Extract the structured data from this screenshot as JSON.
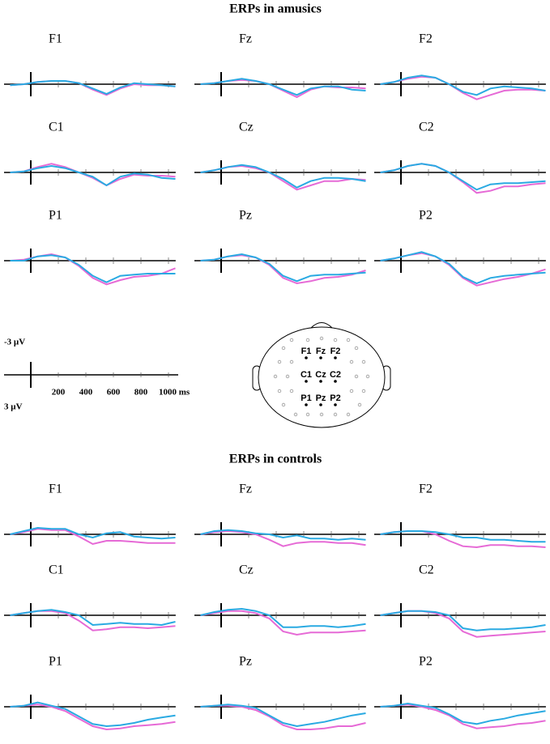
{
  "chart_data": {
    "type": "line",
    "x": [
      -150,
      -50,
      50,
      150,
      250,
      350,
      450,
      550,
      650,
      750,
      850,
      950,
      1050
    ],
    "xlim": [
      -194,
      1070
    ],
    "xticks": [
      200,
      400,
      600,
      800,
      {
        "value": 1000,
        "label": "1000 ms"
      }
    ],
    "ylim": [
      -3,
      3
    ],
    "yticks": [
      {
        "value": -3,
        "label": "-3 µV"
      },
      {
        "value": 3,
        "label": "3 µV"
      }
    ],
    "groups": [
      {
        "title": "ERPs in amusics",
        "panels": [
          {
            "label": "F1",
            "series": [
              {
                "color": "#e66ad6",
                "values": [
                  0.1,
                  0,
                  -0.2,
                  -0.3,
                  -0.3,
                  -0.1,
                  0.5,
                  1.0,
                  0.4,
                  0,
                  0.1,
                  0.1,
                  0.2
                ]
              },
              {
                "color": "#2aaae2",
                "values": [
                  0.1,
                  0,
                  -0.2,
                  -0.3,
                  -0.3,
                  -0.1,
                  0.4,
                  0.9,
                  0.3,
                  -0.1,
                  0,
                  0.1,
                  0.2
                ]
              }
            ]
          },
          {
            "label": "Fz",
            "series": [
              {
                "color": "#e66ad6",
                "values": [
                  0,
                  -0.1,
                  -0.3,
                  -0.4,
                  -0.3,
                  0,
                  0.6,
                  1.2,
                  0.5,
                  0.2,
                  0.3,
                  0.3,
                  0.4
                ]
              },
              {
                "color": "#2aaae2",
                "values": [
                  0,
                  -0.1,
                  -0.3,
                  -0.5,
                  -0.3,
                  0,
                  0.5,
                  1.0,
                  0.4,
                  0.2,
                  0.2,
                  0.5,
                  0.6
                ]
              }
            ]
          },
          {
            "label": "F2",
            "series": [
              {
                "color": "#e66ad6",
                "values": [
                  0,
                  -0.2,
                  -0.5,
                  -0.7,
                  -0.6,
                  0,
                  0.8,
                  1.4,
                  1.0,
                  0.6,
                  0.5,
                  0.5,
                  0.6
                ]
              },
              {
                "color": "#2aaae2",
                "values": [
                  0,
                  -0.2,
                  -0.6,
                  -0.8,
                  -0.6,
                  0,
                  0.7,
                  1.0,
                  0.4,
                  0.2,
                  0.3,
                  0.4,
                  0.6
                ]
              }
            ]
          },
          {
            "label": "C1",
            "series": [
              {
                "color": "#e66ad6",
                "values": [
                  0,
                  -0.1,
                  -0.5,
                  -0.8,
                  -0.5,
                  0,
                  0.5,
                  1.2,
                  0.6,
                  0.2,
                  0.3,
                  0.3,
                  0.4
                ]
              },
              {
                "color": "#2aaae2",
                "values": [
                  0,
                  -0.1,
                  -0.4,
                  -0.6,
                  -0.4,
                  0,
                  0.4,
                  1.2,
                  0.4,
                  0.1,
                  0.2,
                  0.5,
                  0.6
                ]
              }
            ]
          },
          {
            "label": "Cz",
            "series": [
              {
                "color": "#e66ad6",
                "values": [
                  0,
                  -0.2,
                  -0.5,
                  -0.6,
                  -0.4,
                  0,
                  0.8,
                  1.6,
                  1.2,
                  0.8,
                  0.8,
                  0.6,
                  0.7
                ]
              },
              {
                "color": "#2aaae2",
                "values": [
                  0,
                  -0.2,
                  -0.5,
                  -0.7,
                  -0.5,
                  0,
                  0.6,
                  1.4,
                  0.8,
                  0.5,
                  0.5,
                  0.6,
                  0.8
                ]
              }
            ]
          },
          {
            "label": "C2",
            "series": [
              {
                "color": "#e66ad6",
                "values": [
                  0,
                  -0.2,
                  -0.6,
                  -0.8,
                  -0.6,
                  0,
                  0.9,
                  1.9,
                  1.7,
                  1.3,
                  1.3,
                  1.1,
                  1.0
                ]
              },
              {
                "color": "#2aaae2",
                "values": [
                  0,
                  -0.2,
                  -0.6,
                  -0.8,
                  -0.6,
                  0,
                  0.8,
                  1.6,
                  1.1,
                  1.0,
                  1.0,
                  0.9,
                  0.8
                ]
              }
            ]
          },
          {
            "label": "P1",
            "series": [
              {
                "color": "#e66ad6",
                "values": [
                  0,
                  -0.1,
                  -0.4,
                  -0.6,
                  -0.3,
                  0.5,
                  1.6,
                  2.2,
                  1.8,
                  1.5,
                  1.4,
                  1.2,
                  0.7
                ]
              },
              {
                "color": "#2aaae2",
                "values": [
                  0,
                  0,
                  -0.4,
                  -0.5,
                  -0.3,
                  0.4,
                  1.4,
                  2.0,
                  1.4,
                  1.3,
                  1.2,
                  1.2,
                  1.2
                ]
              }
            ]
          },
          {
            "label": "Pz",
            "series": [
              {
                "color": "#e66ad6",
                "values": [
                  0,
                  -0.1,
                  -0.4,
                  -0.5,
                  -0.3,
                  0.4,
                  1.6,
                  2.1,
                  1.9,
                  1.6,
                  1.5,
                  1.3,
                  0.9
                ]
              },
              {
                "color": "#2aaae2",
                "values": [
                  0,
                  -0.1,
                  -0.4,
                  -0.6,
                  -0.3,
                  0.3,
                  1.4,
                  1.9,
                  1.4,
                  1.3,
                  1.3,
                  1.2,
                  1.1
                ]
              }
            ]
          },
          {
            "label": "P2",
            "series": [
              {
                "color": "#e66ad6",
                "values": [
                  0,
                  -0.2,
                  -0.5,
                  -0.7,
                  -0.4,
                  0.4,
                  1.6,
                  2.3,
                  2.0,
                  1.7,
                  1.5,
                  1.2,
                  0.8
                ]
              },
              {
                "color": "#2aaae2",
                "values": [
                  0,
                  -0.2,
                  -0.5,
                  -0.8,
                  -0.4,
                  0.3,
                  1.5,
                  2.1,
                  1.6,
                  1.4,
                  1.3,
                  1.2,
                  1.1
                ]
              }
            ]
          }
        ]
      },
      {
        "title": "ERPs in controls",
        "panels": [
          {
            "label": "F1",
            "series": [
              {
                "color": "#e66ad6",
                "values": [
                  0,
                  -0.2,
                  -0.5,
                  -0.4,
                  -0.4,
                  0.2,
                  0.9,
                  0.6,
                  0.6,
                  0.7,
                  0.8,
                  0.8,
                  0.8
                ]
              },
              {
                "color": "#2aaae2",
                "values": [
                  0,
                  -0.3,
                  -0.6,
                  -0.5,
                  -0.5,
                  0,
                  0.3,
                  -0.1,
                  -0.2,
                  0.2,
                  0.3,
                  0.4,
                  0.3
                ]
              }
            ]
          },
          {
            "label": "Fz",
            "series": [
              {
                "color": "#e66ad6",
                "values": [
                  0,
                  -0.2,
                  -0.3,
                  -0.2,
                  0,
                  0.5,
                  1.1,
                  0.8,
                  0.7,
                  0.7,
                  0.8,
                  0.8,
                  1.0
                ]
              },
              {
                "color": "#2aaae2",
                "values": [
                  0,
                  -0.3,
                  -0.4,
                  -0.3,
                  -0.1,
                  0,
                  0.3,
                  0.1,
                  0.4,
                  0.4,
                  0.5,
                  0.4,
                  0.5
                ]
              }
            ]
          },
          {
            "label": "F2",
            "series": [
              {
                "color": "#e66ad6",
                "values": [
                  0,
                  -0.2,
                  -0.3,
                  -0.3,
                  0,
                  0.6,
                  1.1,
                  1.2,
                  1.0,
                  1.0,
                  1.1,
                  1.1,
                  1.2
                ]
              },
              {
                "color": "#2aaae2",
                "values": [
                  0,
                  -0.2,
                  -0.3,
                  -0.3,
                  -0.2,
                  0,
                  0.3,
                  0.3,
                  0.5,
                  0.5,
                  0.6,
                  0.7,
                  0.7
                ]
              }
            ]
          },
          {
            "label": "C1",
            "series": [
              {
                "color": "#e66ad6",
                "values": [
                  0,
                  -0.2,
                  -0.4,
                  -0.4,
                  -0.2,
                  0.5,
                  1.4,
                  1.3,
                  1.1,
                  1.1,
                  1.2,
                  1.1,
                  1.0
                ]
              },
              {
                "color": "#2aaae2",
                "values": [
                  0,
                  -0.2,
                  -0.4,
                  -0.5,
                  -0.3,
                  0,
                  0.9,
                  0.8,
                  0.7,
                  0.8,
                  0.8,
                  0.9,
                  0.6
                ]
              }
            ]
          },
          {
            "label": "Cz",
            "series": [
              {
                "color": "#e66ad6",
                "values": [
                  0,
                  -0.2,
                  -0.4,
                  -0.4,
                  -0.2,
                  0.3,
                  1.5,
                  1.8,
                  1.6,
                  1.6,
                  1.6,
                  1.5,
                  1.4
                ]
              },
              {
                "color": "#2aaae2",
                "values": [
                  0,
                  -0.3,
                  -0.5,
                  -0.6,
                  -0.4,
                  0,
                  1.1,
                  1.1,
                  1.0,
                  1.0,
                  1.1,
                  1.0,
                  0.8
                ]
              }
            ]
          },
          {
            "label": "C2",
            "series": [
              {
                "color": "#e66ad6",
                "values": [
                  0,
                  -0.2,
                  -0.4,
                  -0.4,
                  -0.2,
                  0.3,
                  1.5,
                  2.0,
                  1.9,
                  1.8,
                  1.7,
                  1.6,
                  1.5
                ]
              },
              {
                "color": "#2aaae2",
                "values": [
                  0,
                  -0.2,
                  -0.4,
                  -0.4,
                  -0.3,
                  0,
                  1.2,
                  1.4,
                  1.3,
                  1.3,
                  1.2,
                  1.1,
                  0.9
                ]
              }
            ]
          },
          {
            "label": "P1",
            "series": [
              {
                "color": "#e66ad6",
                "values": [
                  0,
                  -0.1,
                  -0.2,
                  0,
                  0.4,
                  1.1,
                  1.8,
                  2.1,
                  2.0,
                  1.8,
                  1.7,
                  1.6,
                  1.4
                ]
              },
              {
                "color": "#2aaae2",
                "values": [
                  0,
                  -0.1,
                  -0.4,
                  -0.1,
                  0.2,
                  0.9,
                  1.6,
                  1.8,
                  1.7,
                  1.5,
                  1.2,
                  1.0,
                  0.8
                ]
              }
            ]
          },
          {
            "label": "Pz",
            "series": [
              {
                "color": "#e66ad6",
                "values": [
                  0,
                  -0.1,
                  -0.1,
                  0,
                  0.3,
                  0.9,
                  1.7,
                  2.1,
                  2.1,
                  2.0,
                  1.8,
                  1.8,
                  1.5
                ]
              },
              {
                "color": "#2aaae2",
                "values": [
                  0,
                  -0.1,
                  -0.2,
                  -0.1,
                  0.1,
                  0.8,
                  1.5,
                  1.8,
                  1.6,
                  1.4,
                  1.1,
                  0.8,
                  0.6
                ]
              }
            ]
          },
          {
            "label": "P2",
            "series": [
              {
                "color": "#e66ad6",
                "values": [
                  0,
                  -0.1,
                  -0.2,
                  0,
                  0.3,
                  0.8,
                  1.6,
                  2.0,
                  1.9,
                  1.8,
                  1.6,
                  1.5,
                  1.3
                ]
              },
              {
                "color": "#2aaae2",
                "values": [
                  0,
                  -0.1,
                  -0.3,
                  -0.1,
                  0.1,
                  0.7,
                  1.4,
                  1.6,
                  1.3,
                  1.1,
                  0.8,
                  0.6,
                  0.4
                ]
              }
            ]
          }
        ]
      }
    ],
    "head": {
      "electrodes": [
        "F1",
        "Fz",
        "F2",
        "C1",
        "Cz",
        "C2",
        "P1",
        "Pz",
        "P2"
      ]
    }
  }
}
